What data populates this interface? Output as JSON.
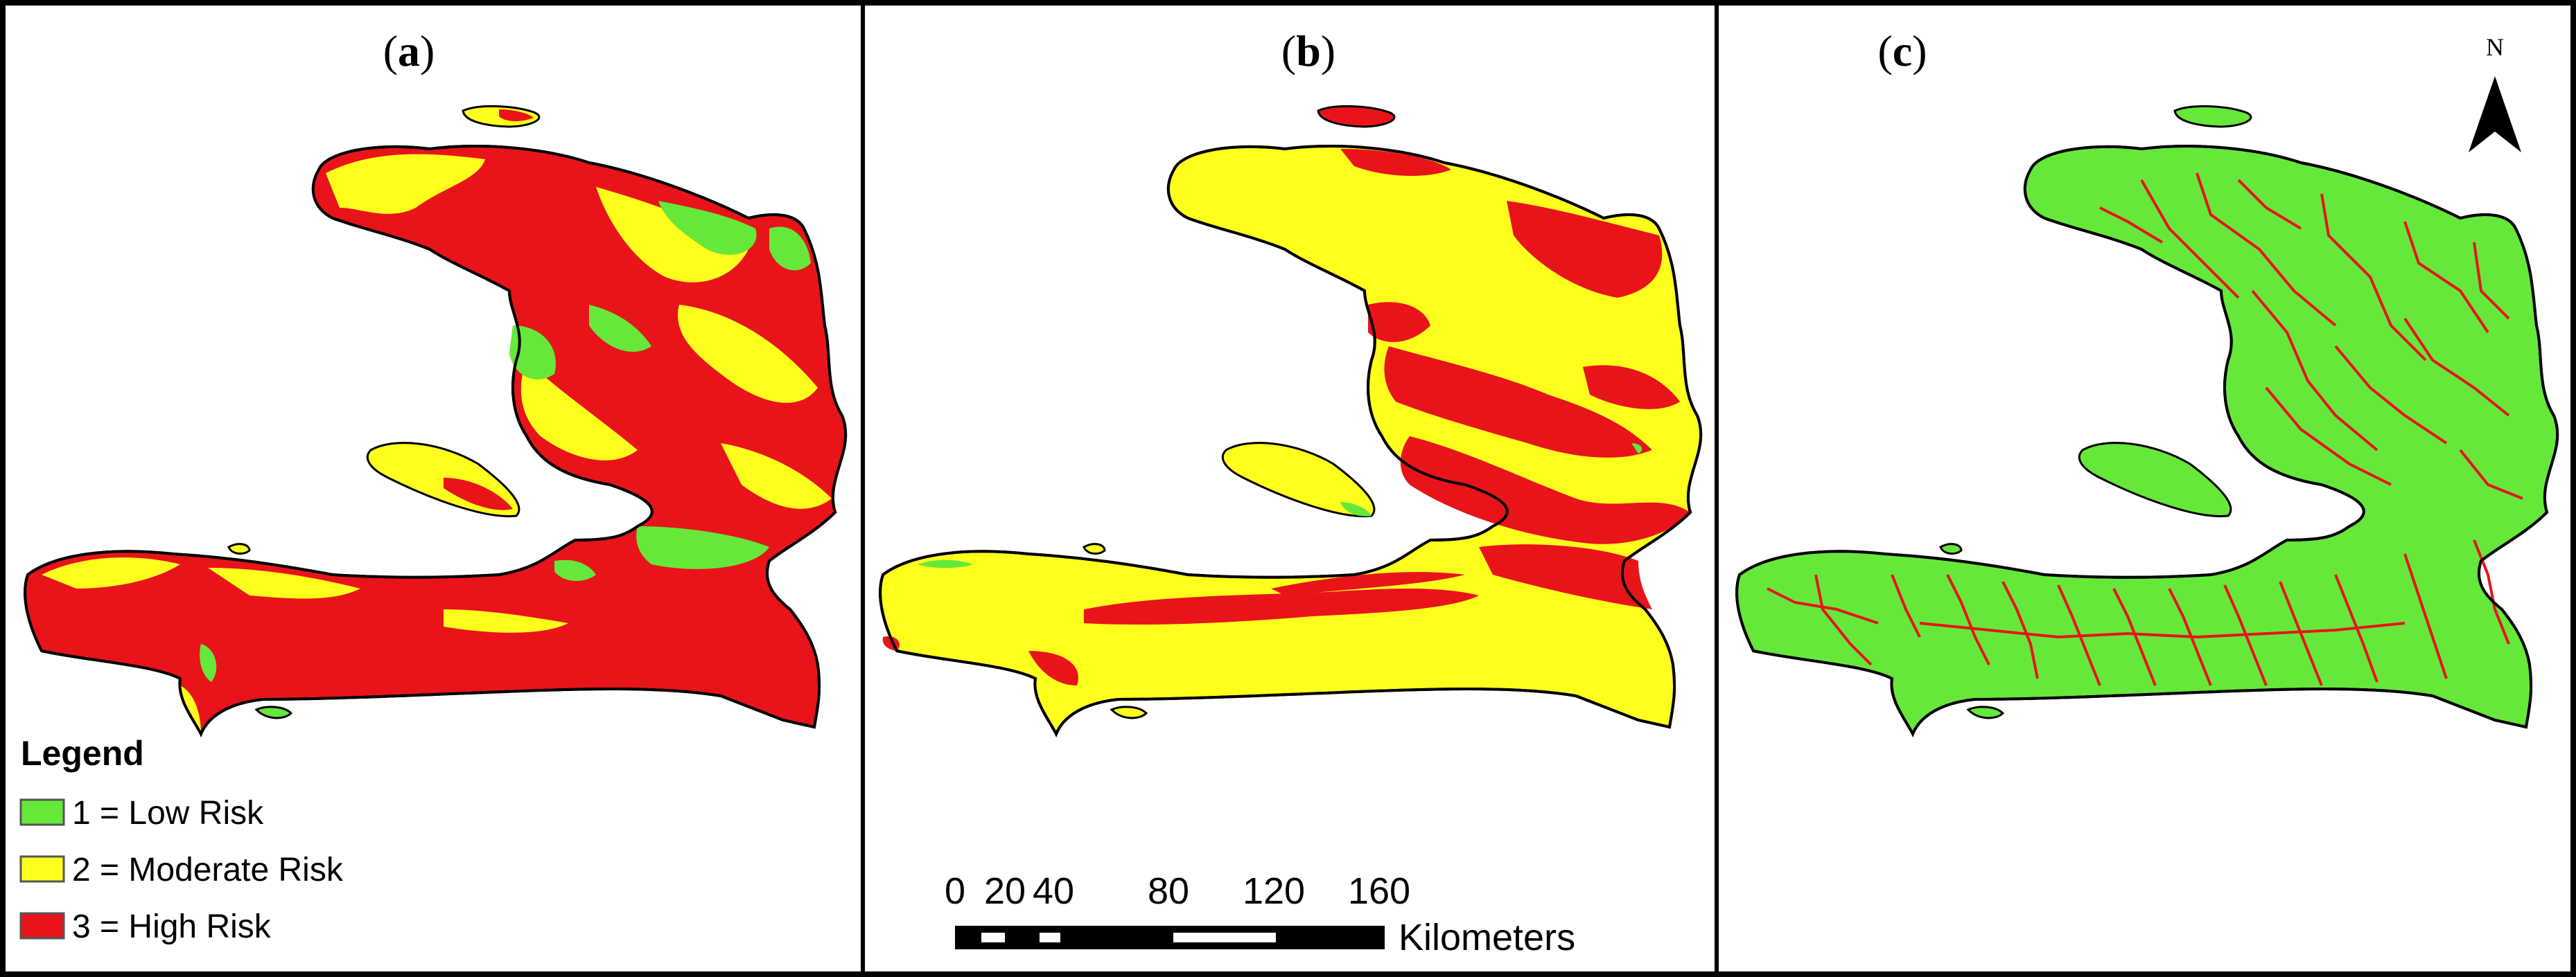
{
  "panels": [
    {
      "label": "(a)",
      "label_bold": "a"
    },
    {
      "label": "(b)",
      "label_bold": "b"
    },
    {
      "label": "(c)",
      "label_bold": "c"
    }
  ],
  "legend": {
    "title": "Legend",
    "items": [
      {
        "label": "1 = Low Risk",
        "color": "#66e83a"
      },
      {
        "label": "2 = Moderate Risk",
        "color": "#ffff1e"
      },
      {
        "label": "3 = High Risk",
        "color": "#e8141a"
      }
    ]
  },
  "scale_bar": {
    "ticks": [
      "0",
      "20",
      "40",
      "80",
      "120",
      "160"
    ],
    "unit": "Kilometers"
  },
  "north_arrow": {
    "label": "N"
  },
  "colors": {
    "low": "#66e83a",
    "moderate": "#ffff1e",
    "high": "#e8141a",
    "outline": "#000000"
  }
}
